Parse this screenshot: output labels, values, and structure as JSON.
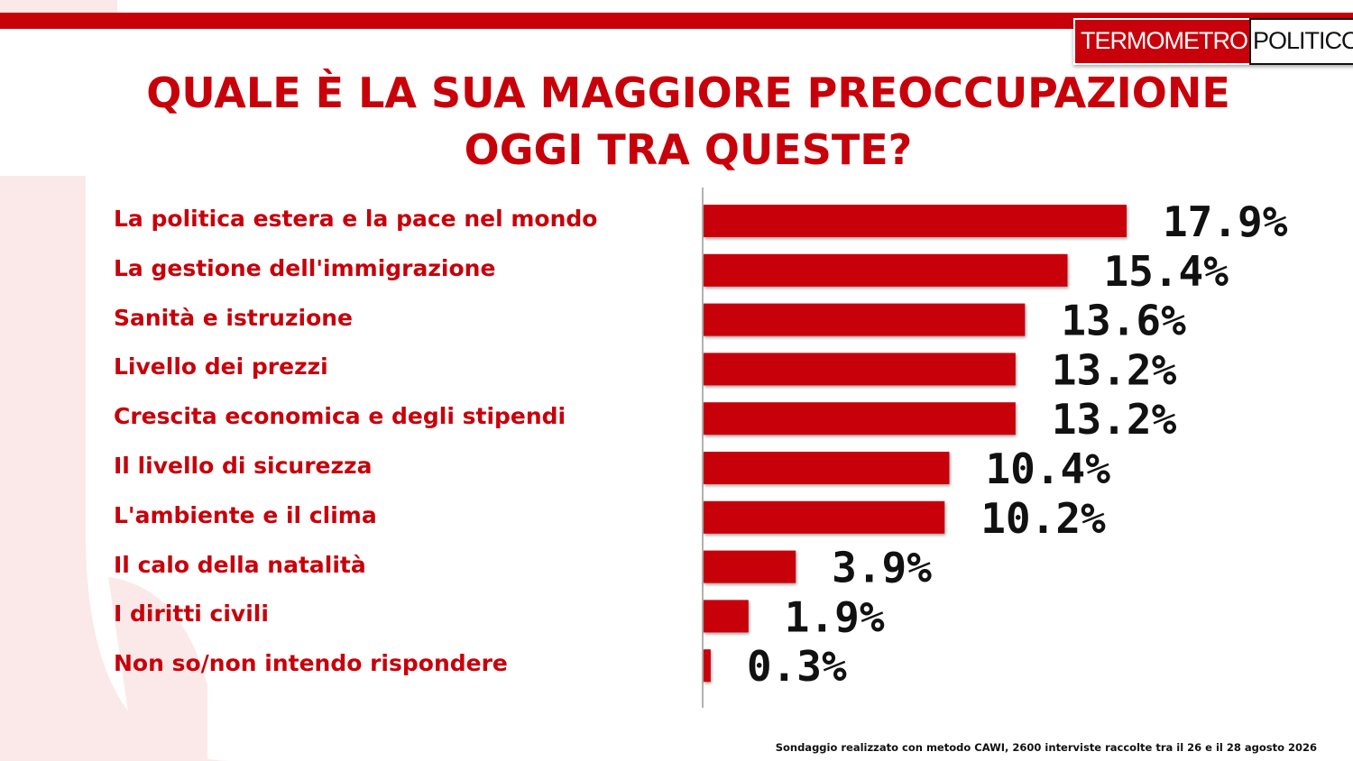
{
  "brand": {
    "logo_part1": "TERMOMETRO",
    "logo_part2": "POLITICO",
    "red": "#c8000a",
    "light_red": "#fbe9e9"
  },
  "chart_data": {
    "type": "bar",
    "orientation": "horizontal",
    "title": "QUALE È LA SUA MAGGIORE PREOCCUPAZIONE OGGI TRA QUESTE?",
    "title_line1": "QUALE È LA SUA MAGGIORE PREOCCUPAZIONE",
    "title_line2": "OGGI TRA QUESTE?",
    "categories": [
      "La politica estera e la pace nel mondo",
      "La gestione dell'immigrazione",
      "Sanità e istruzione",
      "Livello dei prezzi",
      "Crescita economica e degli stipendi",
      "Il livello di sicurezza",
      "L'ambiente e il clima",
      "Il calo della natalità",
      "I diritti civili",
      "Non so/non intendo rispondere"
    ],
    "values": [
      17.9,
      15.4,
      13.6,
      13.2,
      13.2,
      10.4,
      10.2,
      3.9,
      1.9,
      0.3
    ],
    "value_labels": [
      "17.9%",
      "15.4%",
      "13.6%",
      "13.2%",
      "13.2%",
      "10.4%",
      "10.2%",
      "3.9%",
      "1.9%",
      "0.3%"
    ],
    "unit": "%",
    "bar_color": "#c8000a",
    "grid": false,
    "legend": "none"
  },
  "footnote": "Sondaggio realizzato con metodo CAWI, 2600 interviste raccolte tra il 26 e il 28 agosto  2026"
}
